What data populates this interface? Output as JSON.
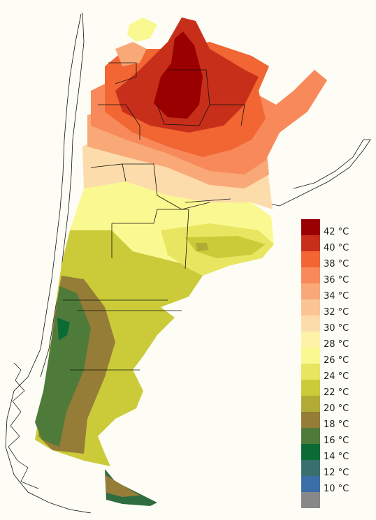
{
  "legend": {
    "items": [
      {
        "label": "42 °C",
        "color": "#9a0000"
      },
      {
        "label": "40 °C",
        "color": "#c82f1a"
      },
      {
        "label": "38 °C",
        "color": "#f16633"
      },
      {
        "label": "36 °C",
        "color": "#f7895a"
      },
      {
        "label": "34 °C",
        "color": "#f9a877"
      },
      {
        "label": "32 °C",
        "color": "#fbc495"
      },
      {
        "label": "30 °C",
        "color": "#fcdcaa"
      },
      {
        "label": "28 °C",
        "color": "#fef2a8"
      },
      {
        "label": "26 °C",
        "color": "#faf890"
      },
      {
        "label": "24 °C",
        "color": "#e8e660"
      },
      {
        "label": "22 °C",
        "color": "#cbcb3a"
      },
      {
        "label": "20 °C",
        "color": "#b1aa35"
      },
      {
        "label": "18 °C",
        "color": "#957c37"
      },
      {
        "label": "16 °C",
        "color": "#4f7b3a"
      },
      {
        "label": "14 °C",
        "color": "#0a6b35"
      },
      {
        "label": "12 °C",
        "color": "#3a6f6f"
      },
      {
        "label": "10 °C",
        "color": "#3a6fa7"
      },
      {
        "label": "",
        "color": "#888888"
      }
    ]
  }
}
